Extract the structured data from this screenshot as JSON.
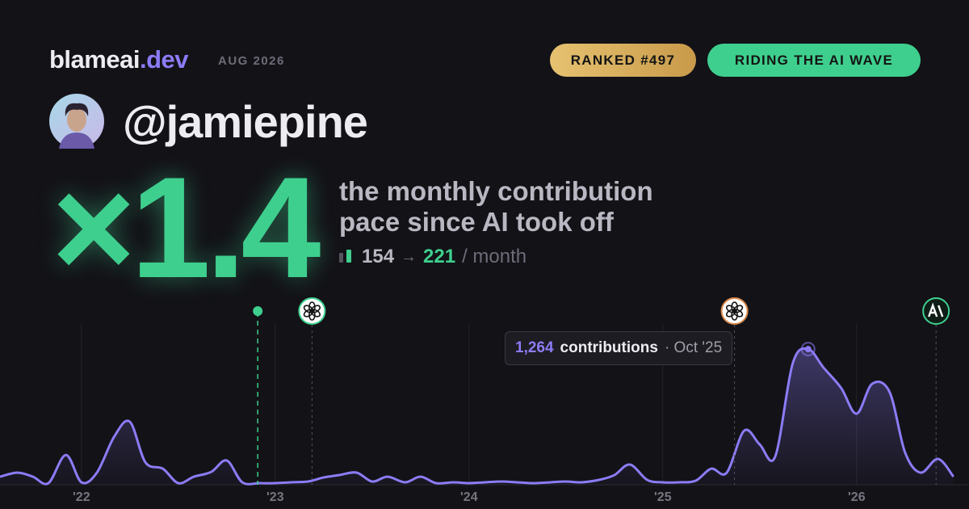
{
  "header": {
    "brand": "blameai",
    "brand_suffix": ".dev",
    "date": "AUG 2026",
    "badges": [
      "RANKED #497",
      "RIDING THE AI WAVE"
    ],
    "handle": "@jamiepine"
  },
  "stat": {
    "multiplier": "×1.4",
    "description": [
      "the monthly contribution",
      "pace since AI took off"
    ],
    "from": "154",
    "arrow": "→",
    "to": "221",
    "unit": "/ month"
  },
  "chart_data": {
    "type": "area",
    "color": "#8b7cf6",
    "x": [
      2021.58,
      2021.67,
      2021.75,
      2021.83,
      2021.92,
      2022,
      2022.08,
      2022.17,
      2022.25,
      2022.33,
      2022.42,
      2022.5,
      2022.58,
      2022.67,
      2022.75,
      2022.83,
      2022.92,
      2023,
      2023.08,
      2023.17,
      2023.25,
      2023.33,
      2023.42,
      2023.5,
      2023.58,
      2023.67,
      2023.75,
      2023.83,
      2023.92,
      2024,
      2024.08,
      2024.17,
      2024.25,
      2024.33,
      2024.42,
      2024.5,
      2024.58,
      2024.67,
      2024.75,
      2024.83,
      2024.92,
      2025,
      2025.08,
      2025.17,
      2025.25,
      2025.33,
      2025.42,
      2025.5,
      2025.58,
      2025.67,
      2025.75,
      2025.83,
      2025.92,
      2026,
      2026.08,
      2026.17,
      2026.25,
      2026.33,
      2026.42,
      2026.5
    ],
    "values": [
      75,
      113,
      75,
      15,
      278,
      23,
      113,
      451,
      587,
      210,
      150,
      15,
      75,
      120,
      226,
      23,
      15,
      15,
      23,
      30,
      68,
      90,
      113,
      30,
      75,
      23,
      75,
      15,
      23,
      15,
      23,
      30,
      23,
      15,
      23,
      30,
      23,
      45,
      90,
      188,
      45,
      23,
      23,
      38,
      150,
      113,
      504,
      376,
      263,
      1128,
      1264,
      1090,
      902,
      662,
      940,
      865,
      301,
      113,
      241,
      75
    ],
    "xlim": [
      2021.58,
      2026.58
    ],
    "ylim": [
      0,
      1400
    ],
    "xticks": [
      {
        "value": 2022,
        "label": "'22"
      },
      {
        "value": 2023,
        "label": "'23"
      },
      {
        "value": 2024,
        "label": "'24"
      },
      {
        "value": 2025,
        "label": "'25"
      },
      {
        "value": 2026,
        "label": "'26"
      }
    ],
    "grid": true,
    "markers": [
      {
        "x": 2022.91,
        "color": "#3ecf8e",
        "icon": "dot"
      },
      {
        "x": 2023.19,
        "color": "#3ecf8e",
        "icon": "openai"
      },
      {
        "x": 2025.37,
        "color": "#d98a4a",
        "icon": "openai"
      },
      {
        "x": 2026.41,
        "color": "#3ecf8e",
        "icon": "anthropic"
      }
    ],
    "tooltip": {
      "x": 2025.75,
      "label": "1,264",
      "text": "contributions",
      "date": "· Oct '25"
    }
  }
}
